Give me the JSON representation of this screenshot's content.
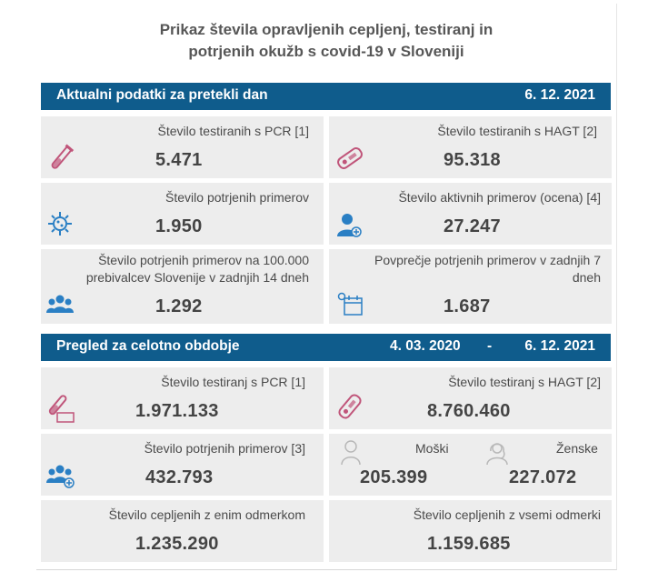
{
  "title_line1": "Prikaz števila opravljenih cepljenj, testiranj in",
  "title_line2": "potrjenih okužb s covid-19 v Sloveniji",
  "daily": {
    "header": "Aktualni podatki za pretekli dan",
    "date": "6. 12. 2021",
    "pcr_label": "Število testiranih s PCR [1]",
    "pcr_value": "5.471",
    "hagt_label": "Število testiranih s HAGT [2]",
    "hagt_value": "95.318",
    "confirmed_label": "Število potrjenih primerov",
    "confirmed_value": "1.950",
    "active_label": "Število aktivnih primerov (ocena) [4]",
    "active_value": "27.247",
    "per100k_label_line1": "Število potrjenih primerov na 100.000",
    "per100k_label_line2": "prebivalcev Slovenije v zadnjih 14 dneh",
    "per100k_value": "1.292",
    "avg7_label_line1": "Povprečje potrjenih primerov v zadnjih 7",
    "avg7_label_line2": "dneh",
    "avg7_value": "1.687"
  },
  "total": {
    "header": "Pregled za celotno obdobje",
    "date_from": "4. 03. 2020",
    "date_sep": "-",
    "date_to": "6. 12. 2021",
    "pcr_label": "Število testiranj s PCR [1]",
    "pcr_value": "1.971.133",
    "hagt_label": "Število testiranj s HAGT [2]",
    "hagt_value": "8.760.460",
    "confirmed_label": "Število potrjenih primerov [3]",
    "confirmed_value": "432.793",
    "male_label": "Moški",
    "male_value": "205.399",
    "female_label": "Ženske",
    "female_value": "227.072",
    "vacc_one_label": "Število cepljenih z enim odmerkom",
    "vacc_one_value": "1.235.290",
    "vacc_all_label": "Število cepljenih z vsemi odmerki",
    "vacc_all_value": "1.159.685"
  },
  "colors": {
    "header_bg": "#0f5c8c",
    "card_bg": "#ededed",
    "icon_pink": "#c0557a",
    "icon_blue": "#2a7fc4"
  },
  "icons": [
    "test-tube-icon",
    "rapid-test-icon",
    "virus-icon",
    "person-icon",
    "people-icon",
    "calendar-icon",
    "male-icon",
    "female-icon"
  ]
}
